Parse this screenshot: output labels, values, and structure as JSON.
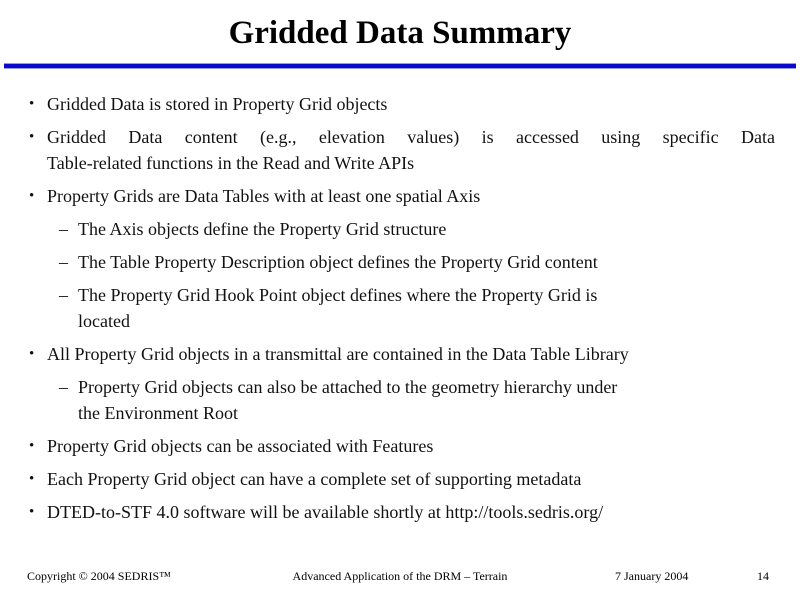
{
  "slide": {
    "title": "Gridded Data Summary",
    "accent_color": "#0a0acc",
    "bullet_marker": "•",
    "sub_marker": "–",
    "bullets": [
      {
        "level": 1,
        "justify": false,
        "lines": [
          "Gridded Data is stored in Property Grid objects"
        ]
      },
      {
        "level": 1,
        "justify": true,
        "lines": [
          "Gridded Data content (e.g., elevation values) is accessed using specific Data",
          "Table-related functions in the Read and Write APIs"
        ]
      },
      {
        "level": 1,
        "justify": false,
        "lines": [
          "Property Grids are Data Tables with at least one spatial Axis"
        ]
      },
      {
        "level": 2,
        "justify": false,
        "lines": [
          "The Axis objects define the Property Grid structure"
        ]
      },
      {
        "level": 2,
        "justify": false,
        "lines": [
          "The Table Property Description object defines the Property Grid content"
        ]
      },
      {
        "level": 2,
        "justify": false,
        "lines": [
          "The Property Grid Hook Point object defines where the Property Grid is",
          "located"
        ]
      },
      {
        "level": 1,
        "justify": false,
        "lines": [
          "All Property Grid objects in a transmittal are contained in the Data Table Library"
        ]
      },
      {
        "level": 2,
        "justify": false,
        "lines": [
          "Property Grid objects can also be attached to the geometry hierarchy under",
          "the Environment Root"
        ]
      },
      {
        "level": 1,
        "justify": false,
        "lines": [
          "Property Grid objects can be associated with Features"
        ]
      },
      {
        "level": 1,
        "justify": false,
        "lines": [
          "Each Property Grid object can have a complete set of supporting metadata"
        ]
      },
      {
        "level": 1,
        "justify": false,
        "lines": [
          "DTED-to-STF 4.0 software will be available shortly at http://tools.sedris.org/"
        ]
      }
    ],
    "footer": {
      "copyright": "Copyright © 2004 SEDRIS™",
      "center": "Advanced Application of the DRM – Terrain",
      "date": "7 January 2004",
      "page": "14"
    }
  }
}
